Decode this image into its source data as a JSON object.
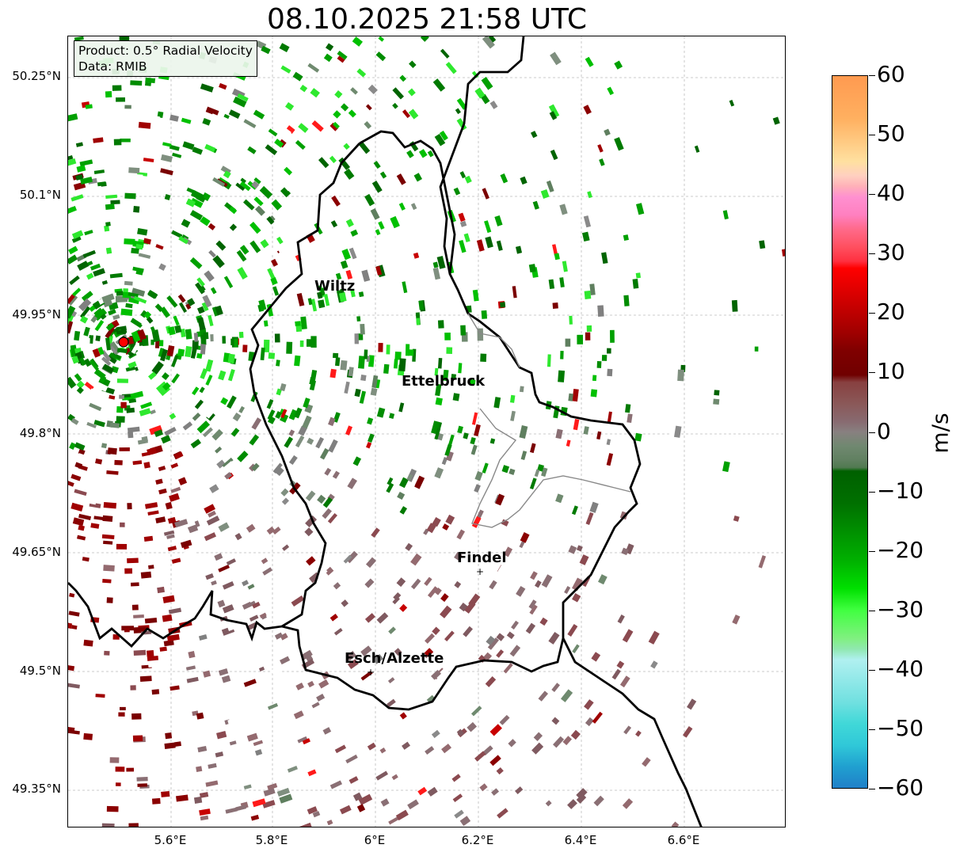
{
  "title": "08.10.2025 21:58 UTC",
  "info": {
    "product": "Product: 0.5° Radial Velocity",
    "data_source": "Data: RMIB"
  },
  "axes": {
    "lat_ticks": [
      "50.25°N",
      "50.1°N",
      "49.95°N",
      "49.8°N",
      "49.65°N",
      "49.5°N",
      "49.35°N"
    ],
    "lon_ticks": [
      "5.6°E",
      "5.8°E",
      "6°E",
      "6.2°E",
      "6.4°E",
      "6.6°E"
    ]
  },
  "places": {
    "wiltz": "Wiltz",
    "ettelbruck": "Ettelbruck",
    "findel": "Findel",
    "esch": "Esch/Alzette"
  },
  "colorbar": {
    "unit": "m/s",
    "ticks": [
      "60",
      "50",
      "40",
      "30",
      "20",
      "10",
      "0",
      "−10",
      "−20",
      "−30",
      "−40",
      "−50",
      "−60"
    ],
    "min": -60,
    "max": 60
  },
  "colors": {
    "approaching_strong": "#00ff00",
    "approaching": "#008000",
    "near_zero": "#888888",
    "receding": "#8b0000",
    "receding_strong": "#ff0000",
    "radar_marker": "#ff0000"
  }
}
